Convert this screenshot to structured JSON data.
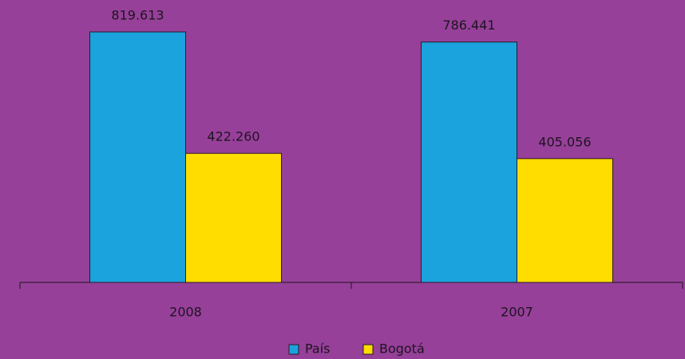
{
  "chart_data": {
    "type": "bar",
    "categories": [
      "2008",
      "2007"
    ],
    "series": [
      {
        "name": "País",
        "color": "#1aa3dc",
        "values": [
          819613,
          786441
        ],
        "value_labels": [
          "819.613",
          "786.441"
        ]
      },
      {
        "name": "Bogotá",
        "color": "#ffdd00",
        "values": [
          422260,
          405056
        ],
        "value_labels": [
          "422.260",
          "405.056"
        ]
      }
    ],
    "legend": "bottom"
  }
}
